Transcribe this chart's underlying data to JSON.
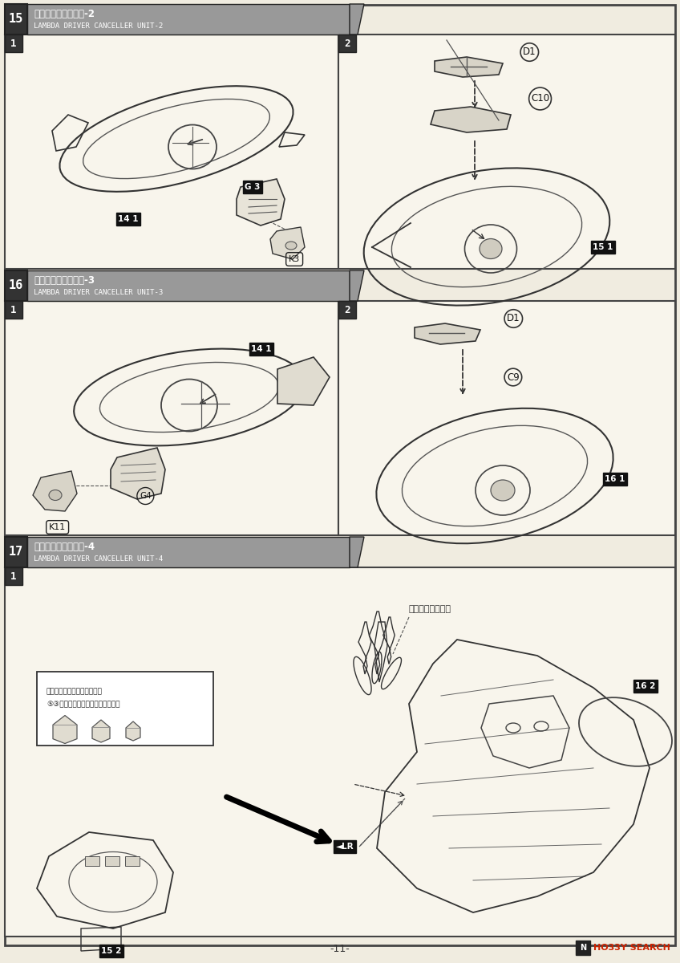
{
  "bg_color": "#f0ece0",
  "panel_bg": "#f8f5ec",
  "border_color": "#555555",
  "header_dark": "#555555",
  "header_gray": "#aaaaaa",
  "page_number": "-11-",
  "hobby_search_color": "#cc2200",
  "sections": [
    {
      "id": "15",
      "title_jp": "妖精の羽の組み立て-2",
      "title_en": "LAMBDA DRIVER CANCELLER UNIT-2"
    },
    {
      "id": "16",
      "title_jp": "妖精の羽の組み立て-3",
      "title_en": "LAMBDA DRIVER CANCELLER UNIT-3"
    },
    {
      "id": "17",
      "title_jp": "妖精の羽の組み立て-4",
      "title_en": "LAMBDA DRIVER CANCELLER UNIT-4"
    }
  ],
  "label_dark_bg": "#222222",
  "label_white_bg": "#ffffff",
  "circle_label_color": "#111111",
  "dashed_color": "#555555"
}
